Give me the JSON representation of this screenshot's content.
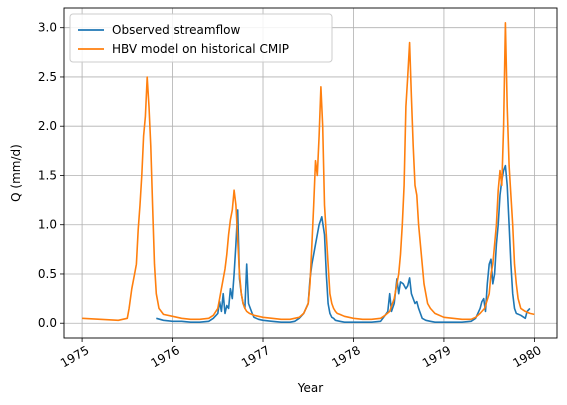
{
  "chart_data": {
    "type": "line",
    "title": "",
    "xlabel": "Year",
    "ylabel": "Q (mm/d)",
    "xlim": [
      1974.8,
      1980.25
    ],
    "ylim": [
      -0.15,
      3.2
    ],
    "xticks": [
      1975,
      1976,
      1977,
      1978,
      1979,
      1980
    ],
    "xtick_labels": [
      "1975",
      "1976",
      "1977",
      "1978",
      "1979",
      "1980"
    ],
    "yticks": [
      0.0,
      0.5,
      1.0,
      1.5,
      2.0,
      2.5,
      3.0
    ],
    "ytick_labels": [
      "0.0",
      "0.5",
      "1.0",
      "1.5",
      "2.0",
      "2.5",
      "3.0"
    ],
    "grid": true,
    "legend_position": "top-left",
    "series": [
      {
        "name": "Observed streamflow",
        "color": "#1f77b4",
        "x": [
          1975.82,
          1975.9,
          1976.0,
          1976.1,
          1976.2,
          1976.3,
          1976.4,
          1976.45,
          1976.5,
          1976.52,
          1976.54,
          1976.56,
          1976.58,
          1976.6,
          1976.62,
          1976.64,
          1976.66,
          1976.68,
          1976.7,
          1976.72,
          1976.74,
          1976.76,
          1976.78,
          1976.8,
          1976.82,
          1976.84,
          1976.86,
          1976.88,
          1976.9,
          1976.95,
          1977.0,
          1977.1,
          1977.2,
          1977.3,
          1977.35,
          1977.4,
          1977.45,
          1977.5,
          1977.52,
          1977.54,
          1977.56,
          1977.58,
          1977.6,
          1977.62,
          1977.65,
          1977.68,
          1977.7,
          1977.72,
          1977.74,
          1977.76,
          1977.78,
          1977.8,
          1977.85,
          1977.9,
          1978.0,
          1978.1,
          1978.2,
          1978.3,
          1978.35,
          1978.38,
          1978.4,
          1978.42,
          1978.45,
          1978.48,
          1978.5,
          1978.52,
          1978.55,
          1978.58,
          1978.6,
          1978.62,
          1978.64,
          1978.66,
          1978.68,
          1978.7,
          1978.72,
          1978.74,
          1978.76,
          1978.8,
          1978.85,
          1978.9,
          1979.0,
          1979.1,
          1979.2,
          1979.3,
          1979.35,
          1979.4,
          1979.42,
          1979.44,
          1979.46,
          1979.48,
          1979.5,
          1979.52,
          1979.54,
          1979.56,
          1979.58,
          1979.6,
          1979.62,
          1979.64,
          1979.66,
          1979.68,
          1979.7,
          1979.72,
          1979.74,
          1979.76,
          1979.78,
          1979.8,
          1979.85,
          1979.9,
          1979.92,
          1979.95
        ],
        "values": [
          0.05,
          0.03,
          0.02,
          0.02,
          0.01,
          0.01,
          0.02,
          0.05,
          0.1,
          0.22,
          0.12,
          0.3,
          0.1,
          0.18,
          0.15,
          0.35,
          0.25,
          0.5,
          0.8,
          1.15,
          0.45,
          0.3,
          0.2,
          0.15,
          0.6,
          0.2,
          0.15,
          0.1,
          0.06,
          0.04,
          0.03,
          0.02,
          0.01,
          0.01,
          0.02,
          0.05,
          0.1,
          0.2,
          0.45,
          0.6,
          0.7,
          0.8,
          0.9,
          1.0,
          1.08,
          0.9,
          0.5,
          0.2,
          0.1,
          0.06,
          0.05,
          0.03,
          0.02,
          0.01,
          0.01,
          0.01,
          0.01,
          0.02,
          0.08,
          0.12,
          0.3,
          0.12,
          0.2,
          0.45,
          0.3,
          0.42,
          0.4,
          0.35,
          0.38,
          0.46,
          0.3,
          0.25,
          0.2,
          0.22,
          0.15,
          0.1,
          0.05,
          0.03,
          0.02,
          0.01,
          0.01,
          0.01,
          0.01,
          0.02,
          0.05,
          0.15,
          0.22,
          0.25,
          0.12,
          0.4,
          0.6,
          0.65,
          0.4,
          0.5,
          0.8,
          1.0,
          1.3,
          1.45,
          1.55,
          1.6,
          1.4,
          1.0,
          0.6,
          0.3,
          0.15,
          0.1,
          0.08,
          0.05,
          0.12,
          0.15
        ]
      },
      {
        "name": "HBV model on historical CMIP",
        "color": "#ff7f0e",
        "x": [
          1975.0,
          1975.2,
          1975.4,
          1975.5,
          1975.52,
          1975.55,
          1975.58,
          1975.6,
          1975.62,
          1975.64,
          1975.66,
          1975.68,
          1975.7,
          1975.72,
          1975.74,
          1975.76,
          1975.78,
          1975.8,
          1975.82,
          1975.85,
          1975.9,
          1976.0,
          1976.1,
          1976.2,
          1976.3,
          1976.4,
          1976.45,
          1976.5,
          1976.52,
          1976.54,
          1976.56,
          1976.58,
          1976.6,
          1976.62,
          1976.64,
          1976.66,
          1976.68,
          1976.7,
          1976.72,
          1976.74,
          1976.76,
          1976.78,
          1976.8,
          1976.82,
          1976.85,
          1976.9,
          1977.0,
          1977.1,
          1977.2,
          1977.3,
          1977.4,
          1977.45,
          1977.5,
          1977.52,
          1977.54,
          1977.56,
          1977.58,
          1977.6,
          1977.62,
          1977.64,
          1977.66,
          1977.68,
          1977.7,
          1977.72,
          1977.74,
          1977.76,
          1977.78,
          1977.8,
          1977.82,
          1977.85,
          1977.9,
          1978.0,
          1978.1,
          1978.2,
          1978.3,
          1978.35,
          1978.4,
          1978.45,
          1978.5,
          1978.52,
          1978.54,
          1978.56,
          1978.58,
          1978.6,
          1978.62,
          1978.64,
          1978.66,
          1978.68,
          1978.7,
          1978.72,
          1978.74,
          1978.76,
          1978.78,
          1978.8,
          1978.82,
          1978.85,
          1978.9,
          1979.0,
          1979.1,
          1979.2,
          1979.3,
          1979.35,
          1979.4,
          1979.45,
          1979.5,
          1979.52,
          1979.54,
          1979.56,
          1979.58,
          1979.6,
          1979.62,
          1979.64,
          1979.66,
          1979.68,
          1979.7,
          1979.72,
          1979.74,
          1979.76,
          1979.78,
          1979.8,
          1979.82,
          1979.85,
          1979.9,
          1979.95,
          1980.0
        ],
        "values": [
          0.05,
          0.04,
          0.03,
          0.05,
          0.15,
          0.35,
          0.5,
          0.6,
          0.95,
          1.2,
          1.5,
          1.9,
          2.1,
          2.5,
          2.2,
          1.8,
          1.2,
          0.6,
          0.3,
          0.15,
          0.09,
          0.07,
          0.05,
          0.04,
          0.04,
          0.05,
          0.08,
          0.15,
          0.25,
          0.35,
          0.45,
          0.55,
          0.7,
          0.9,
          1.05,
          1.15,
          1.35,
          1.2,
          0.85,
          0.5,
          0.3,
          0.2,
          0.15,
          0.12,
          0.1,
          0.08,
          0.06,
          0.05,
          0.04,
          0.04,
          0.06,
          0.1,
          0.2,
          0.4,
          0.8,
          1.2,
          1.65,
          1.5,
          1.9,
          2.4,
          2.0,
          1.2,
          0.9,
          0.6,
          0.3,
          0.2,
          0.15,
          0.12,
          0.1,
          0.09,
          0.07,
          0.05,
          0.04,
          0.04,
          0.05,
          0.08,
          0.12,
          0.25,
          0.5,
          0.7,
          1.0,
          1.4,
          2.2,
          2.5,
          2.85,
          2.3,
          1.8,
          1.4,
          1.3,
          1.0,
          0.8,
          0.6,
          0.4,
          0.3,
          0.2,
          0.15,
          0.1,
          0.06,
          0.05,
          0.04,
          0.04,
          0.06,
          0.1,
          0.15,
          0.3,
          0.5,
          0.6,
          0.8,
          1.0,
          1.35,
          1.55,
          1.4,
          2.0,
          3.05,
          2.2,
          1.6,
          1.3,
          1.0,
          0.6,
          0.4,
          0.25,
          0.15,
          0.12,
          0.1,
          0.09
        ]
      }
    ]
  }
}
